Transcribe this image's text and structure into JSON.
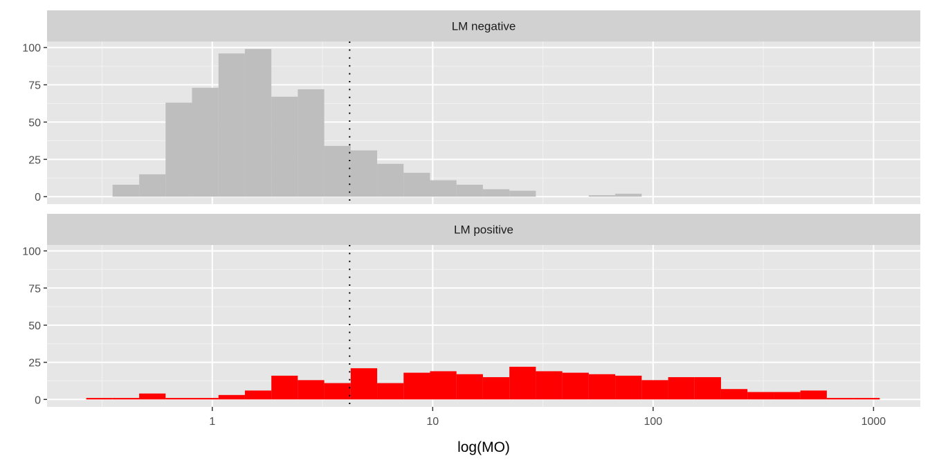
{
  "chart_data": {
    "type": "bar",
    "subtype": "faceted histogram",
    "title": "",
    "xlabel": "log(MO)",
    "ylabel": "",
    "x_scale": "log10",
    "xlim": [
      0.178,
      1630
    ],
    "ylim": [
      -5,
      104
    ],
    "x_ticks": [
      1,
      10,
      100,
      1000
    ],
    "x_tick_labels": [
      "1",
      "10",
      "100",
      "1000"
    ],
    "y_ticks": [
      0,
      25,
      50,
      75,
      100
    ],
    "y_tick_labels": [
      "0",
      "25",
      "50",
      "75",
      "100"
    ],
    "grid": true,
    "reference_line": {
      "x": 4.2,
      "style": "dotted",
      "color": "#000000"
    },
    "bin_edges": [
      0.268,
      0.353,
      0.466,
      0.614,
      0.809,
      1.067,
      1.406,
      1.854,
      2.443,
      3.221,
      4.246,
      5.598,
      7.379,
      9.727,
      12.82,
      16.9,
      22.28,
      29.38,
      38.73,
      51.05,
      67.3,
      88.72,
      117.0,
      154.2,
      203.2,
      267.9,
      353.2,
      465.6,
      613.8,
      809.1,
      1067
    ],
    "facets": [
      {
        "label": "LM negative",
        "color": "#bebebe",
        "counts": [
          0,
          8,
          15,
          63,
          73,
          96,
          99,
          67,
          72,
          34,
          31,
          22,
          16,
          11,
          8,
          5,
          4,
          0,
          0,
          1,
          2,
          0,
          0,
          0,
          0,
          0,
          0,
          0,
          0,
          0
        ]
      },
      {
        "label": "LM positive",
        "color": "#fe0000",
        "counts": [
          1,
          1,
          4,
          1,
          1,
          3,
          6,
          16,
          13,
          11,
          21,
          11,
          18,
          19,
          17,
          15,
          22,
          19,
          18,
          17,
          16,
          13,
          15,
          15,
          7,
          5,
          5,
          6,
          1,
          1
        ]
      }
    ]
  }
}
